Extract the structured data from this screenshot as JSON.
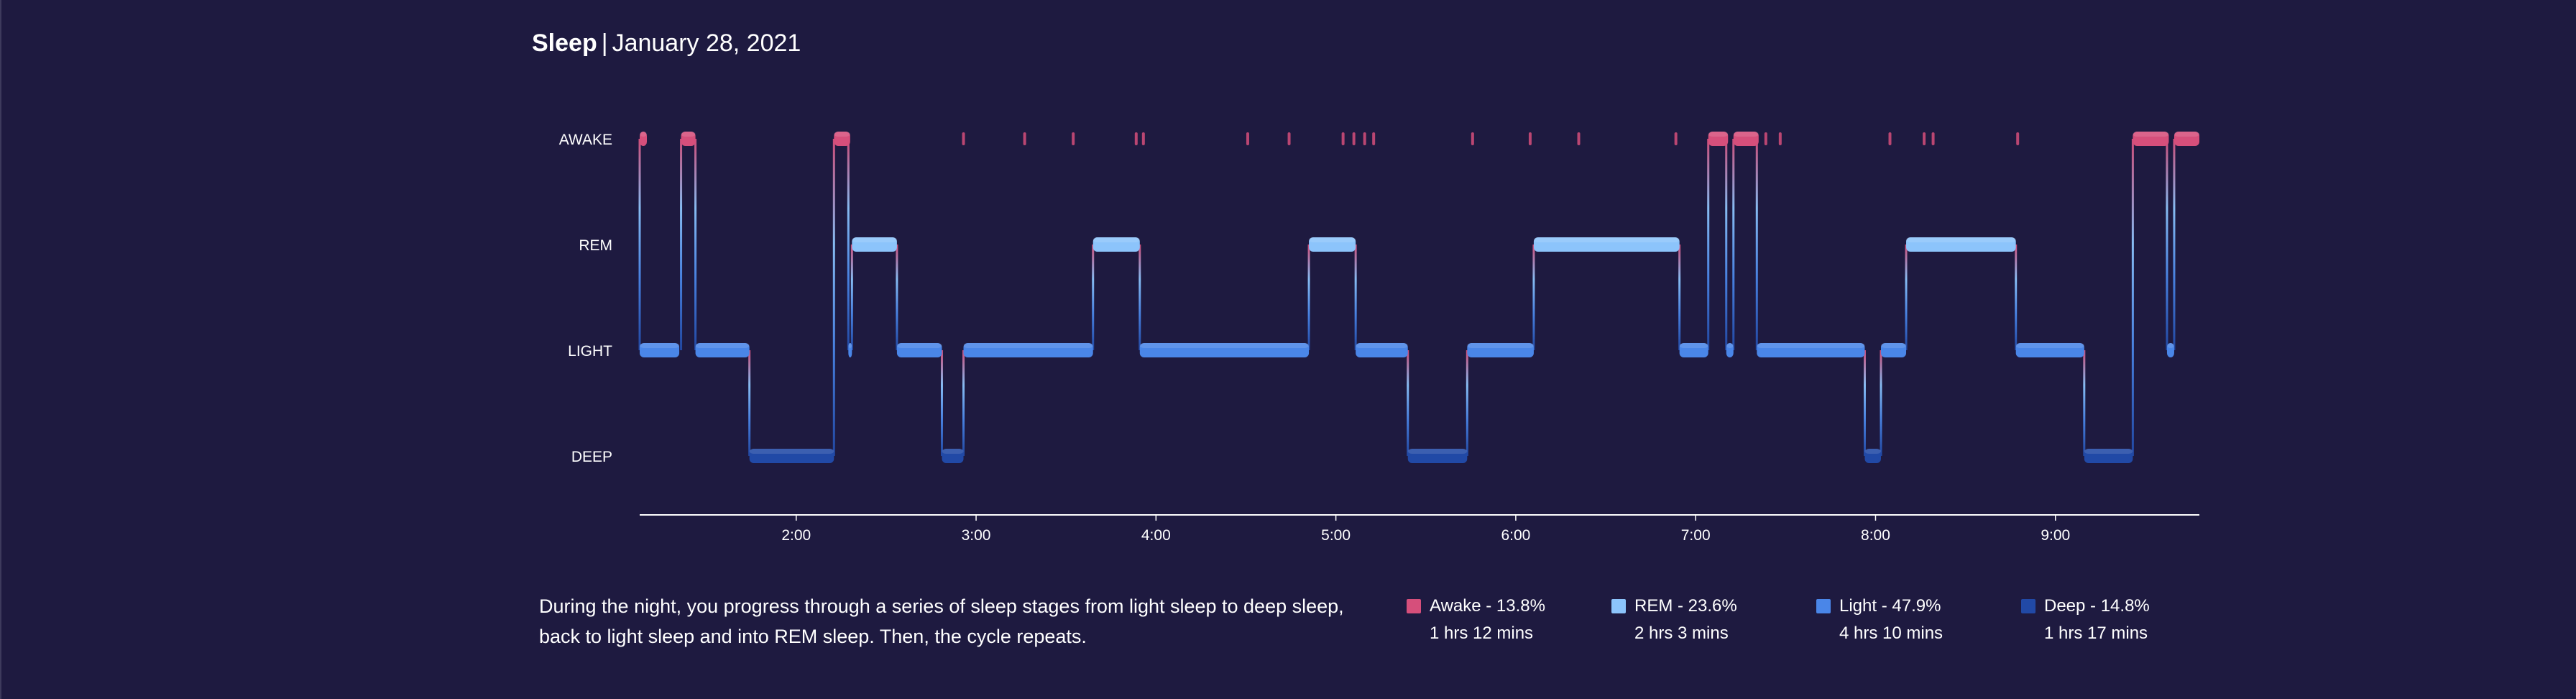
{
  "header": {
    "title": "Sleep",
    "separator": "|",
    "date": "January 28, 2021"
  },
  "chart_data": {
    "type": "hypnogram",
    "x_unit": "time of night (hours)",
    "xlim": [
      1.13,
      9.8
    ],
    "x_ticks": [
      {
        "value": 2,
        "label": "2:00"
      },
      {
        "value": 3,
        "label": "3:00"
      },
      {
        "value": 4,
        "label": "4:00"
      },
      {
        "value": 5,
        "label": "5:00"
      },
      {
        "value": 6,
        "label": "6:00"
      },
      {
        "value": 7,
        "label": "7:00"
      },
      {
        "value": 8,
        "label": "8:00"
      },
      {
        "value": 9,
        "label": "9:00"
      }
    ],
    "stages": [
      {
        "key": "awake",
        "label": "AWAKE",
        "color": "#d64f7b"
      },
      {
        "key": "rem",
        "label": "REM",
        "color": "#8cc4fb"
      },
      {
        "key": "light",
        "label": "LIGHT",
        "color": "#4a86e8"
      },
      {
        "key": "deep",
        "label": "DEEP",
        "color": "#2149a6"
      }
    ],
    "segments": [
      {
        "stage": "awake",
        "start": 1.13,
        "end": 1.17
      },
      {
        "stage": "light",
        "start": 1.13,
        "end": 1.35
      },
      {
        "stage": "awake",
        "start": 1.36,
        "end": 1.44
      },
      {
        "stage": "light",
        "start": 1.44,
        "end": 1.74
      },
      {
        "stage": "deep",
        "start": 1.74,
        "end": 2.21
      },
      {
        "stage": "awake",
        "start": 2.21,
        "end": 2.3
      },
      {
        "stage": "light",
        "start": 2.29,
        "end": 2.31
      },
      {
        "stage": "rem",
        "start": 2.31,
        "end": 2.56
      },
      {
        "stage": "light",
        "start": 2.56,
        "end": 2.81
      },
      {
        "stage": "deep",
        "start": 2.81,
        "end": 2.93
      },
      {
        "stage": "light",
        "start": 2.93,
        "end": 3.65
      },
      {
        "stage": "rem",
        "start": 3.65,
        "end": 3.91
      },
      {
        "stage": "light",
        "start": 3.91,
        "end": 4.85
      },
      {
        "stage": "rem",
        "start": 4.85,
        "end": 5.11
      },
      {
        "stage": "light",
        "start": 5.11,
        "end": 5.4
      },
      {
        "stage": "deep",
        "start": 5.4,
        "end": 5.73
      },
      {
        "stage": "light",
        "start": 5.73,
        "end": 6.1
      },
      {
        "stage": "rem",
        "start": 6.1,
        "end": 6.91
      },
      {
        "stage": "light",
        "start": 6.91,
        "end": 7.07
      },
      {
        "stage": "awake",
        "start": 7.07,
        "end": 7.18
      },
      {
        "stage": "light",
        "start": 7.17,
        "end": 7.21
      },
      {
        "stage": "awake",
        "start": 7.21,
        "end": 7.35
      },
      {
        "stage": "light",
        "start": 7.34,
        "end": 7.94
      },
      {
        "stage": "deep",
        "start": 7.94,
        "end": 8.03
      },
      {
        "stage": "light",
        "start": 8.03,
        "end": 8.17
      },
      {
        "stage": "rem",
        "start": 8.17,
        "end": 8.78
      },
      {
        "stage": "light",
        "start": 8.78,
        "end": 9.16
      },
      {
        "stage": "deep",
        "start": 9.16,
        "end": 9.43
      },
      {
        "stage": "awake",
        "start": 9.43,
        "end": 9.63
      },
      {
        "stage": "light",
        "start": 9.62,
        "end": 9.66
      },
      {
        "stage": "awake",
        "start": 9.66,
        "end": 9.8
      }
    ],
    "brief_awakenings": [
      2.93,
      3.27,
      3.54,
      3.89,
      3.93,
      4.51,
      4.74,
      5.04,
      5.1,
      5.16,
      5.21,
      5.76,
      6.08,
      6.35,
      6.89,
      7.39,
      7.47,
      8.08,
      8.27,
      8.32,
      8.79
    ],
    "legend": [
      {
        "stage": "awake",
        "label": "Awake - 13.8%",
        "percent": 13.8,
        "duration": "1 hrs 12 mins",
        "color": "#d64f7b"
      },
      {
        "stage": "rem",
        "label": "REM - 23.6%",
        "percent": 23.6,
        "duration": "2 hrs 3 mins",
        "color": "#8cc4fb"
      },
      {
        "stage": "light",
        "label": "Light - 47.9%",
        "percent": 47.9,
        "duration": "4 hrs 10 mins",
        "color": "#4a86e8"
      },
      {
        "stage": "deep",
        "label": "Deep - 14.8%",
        "percent": 14.8,
        "duration": "1 hrs 17 mins",
        "color": "#2149a6"
      }
    ]
  },
  "description": "During the night, you progress through a series of sleep stages from light sleep to deep sleep, back to light sleep and into REM sleep. Then, the cycle repeats."
}
